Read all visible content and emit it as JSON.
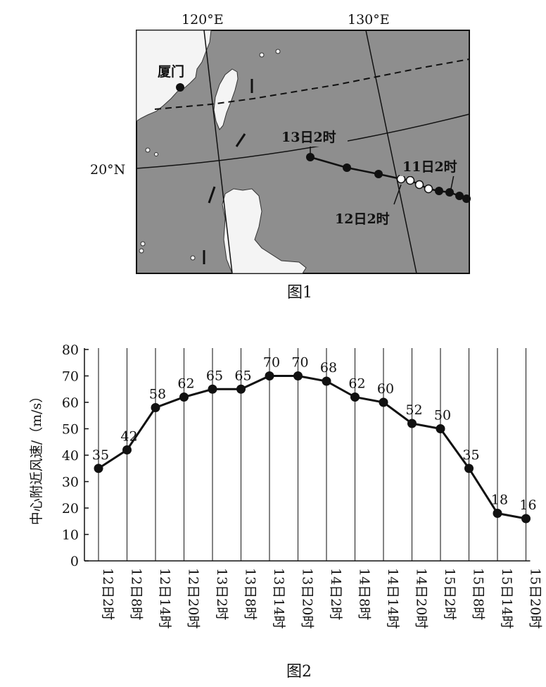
{
  "figure1": {
    "caption": "图1",
    "lon_labels": [
      "120°E",
      "130°E"
    ],
    "lat_label": "20°N",
    "city": "厦门",
    "track_labels": [
      "13日2时",
      "11日2时",
      "12日2时"
    ]
  },
  "figure2": {
    "caption": "图2"
  },
  "chart_data": {
    "type": "line",
    "title": "",
    "xlabel": "",
    "ylabel": "中心附近风速/（m/s）",
    "categories": [
      "12日2时",
      "12日8时",
      "12日14时",
      "12日20时",
      "13日2时",
      "13日8时",
      "13日14时",
      "13日20时",
      "14日2时",
      "14日8时",
      "14日14时",
      "14日20时",
      "15日2时",
      "15日8时",
      "15日14时",
      "15日20时"
    ],
    "values": [
      35,
      42,
      58,
      62,
      65,
      65,
      70,
      70,
      68,
      62,
      60,
      52,
      50,
      35,
      18,
      16
    ],
    "ylim": [
      0,
      80
    ],
    "yticks": [
      0,
      10,
      20,
      30,
      40,
      50,
      60,
      70,
      80
    ],
    "grid": "vertical",
    "color": "#111111"
  }
}
